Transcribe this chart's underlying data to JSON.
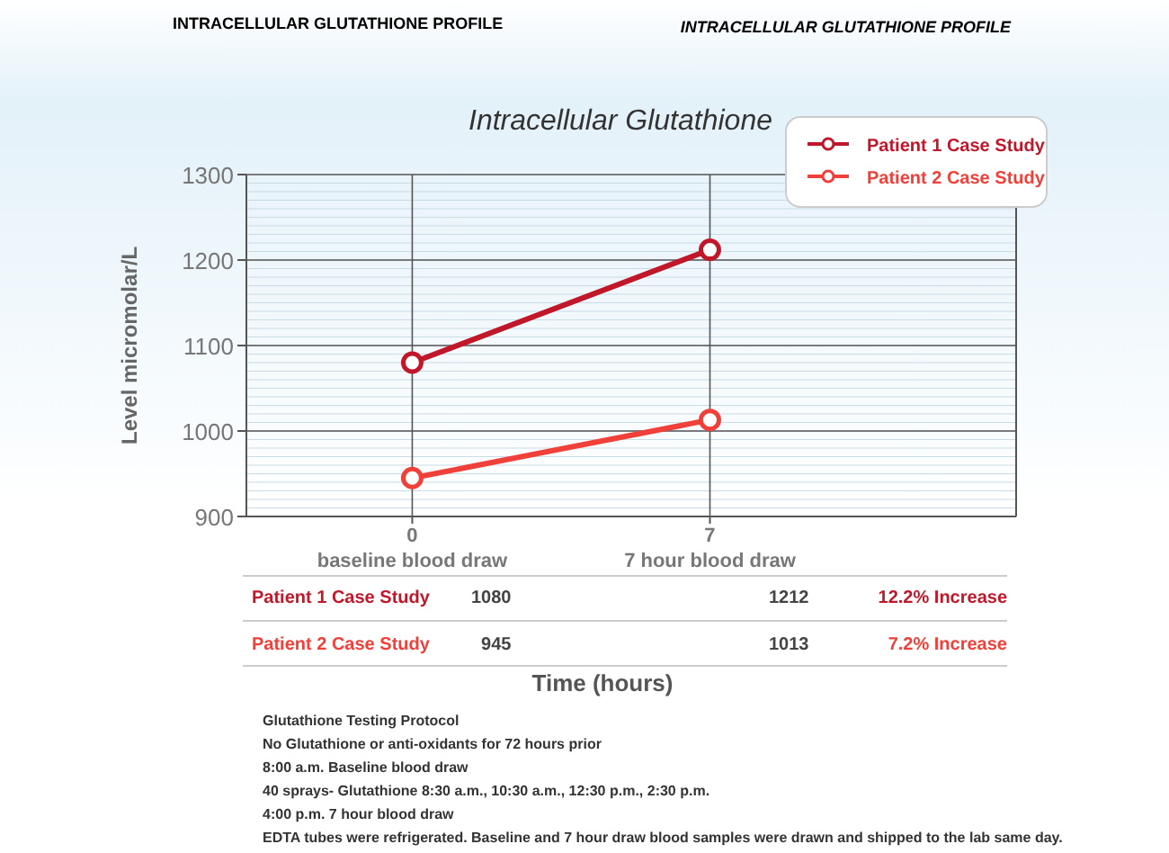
{
  "chart_data": {
    "type": "line",
    "title": "Intracellular Glutathione",
    "ylabel": "Level micromolar/L",
    "x": [
      0,
      7
    ],
    "xlim": [
      -3.9,
      14.2
    ],
    "xticks": [
      0,
      7
    ],
    "series": [
      {
        "name": "Patient 1 Case Study",
        "color": "#c0182a",
        "values": [
          1080,
          1212
        ]
      },
      {
        "name": "Patient 2 Case Study",
        "color": "#f0403a",
        "values": [
          945,
          1013
        ]
      }
    ],
    "ylim": [
      900,
      1300
    ],
    "yticks": [
      900,
      1000,
      1100,
      1200,
      1300
    ],
    "grid": true,
    "legend": "top right",
    "marker": "circle",
    "line_style": "solid",
    "annotations": [
      "INTRACELLULAR GLUTATHIONE PROFILE",
      "INTRACELLULAR GLUTATHIONE PROFILE",
      "12.2% Increase",
      "7.2% Increase",
      "baseline blood draw",
      "7 hour blood draw",
      "1080",
      "1212",
      "945",
      "1013",
      "Time (hours)",
      "Glutathione Testing Protocol",
      "No Glutathione or anti-oxidants for 72 hours prior",
      "8:00 a.m. Baseline blood draw",
      "40 sprays- Glutathione 8:30 a.m., 10:30 a.m., 12:30 p.m., 2:30 p.m.",
      "4:00 p.m. 7 hour blood draw",
      "EDTA tubes were refrigerated. Baseline and 7 hour draw blood samples were drawn and shipped to the lab same day."
    ]
  }
}
